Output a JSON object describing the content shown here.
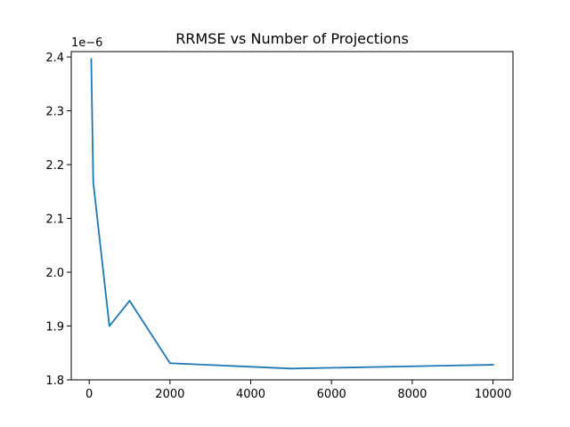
{
  "chart_data": {
    "type": "line",
    "title": "RRMSE vs Number of Projections",
    "xlabel": "",
    "ylabel": "",
    "y_offset_label": "1e−6",
    "x": [
      50,
      100,
      500,
      1000,
      2000,
      5000,
      10000
    ],
    "series": [
      {
        "values": [
          2.396e-06,
          2.167e-06,
          1.9e-06,
          1.947e-06,
          1.831e-06,
          1.821e-06,
          1.828e-06
        ]
      }
    ],
    "xlim": [
      -445,
      10495
    ],
    "ylim": [
      1.8,
      2.41
    ],
    "x_ticks": [
      0,
      2000,
      4000,
      6000,
      8000,
      10000
    ],
    "x_tick_labels": [
      "0",
      "2000",
      "4000",
      "6000",
      "8000",
      "10000"
    ],
    "y_ticks": [
      1.8e-06,
      1.9e-06,
      2e-06,
      2.1e-06,
      2.2e-06,
      2.3e-06,
      2.4e-06
    ],
    "y_tick_labels": [
      "1.8",
      "1.9",
      "2.0",
      "2.1",
      "2.2",
      "2.3",
      "2.4"
    ],
    "grid": false,
    "line_color": "#1f77b4"
  }
}
